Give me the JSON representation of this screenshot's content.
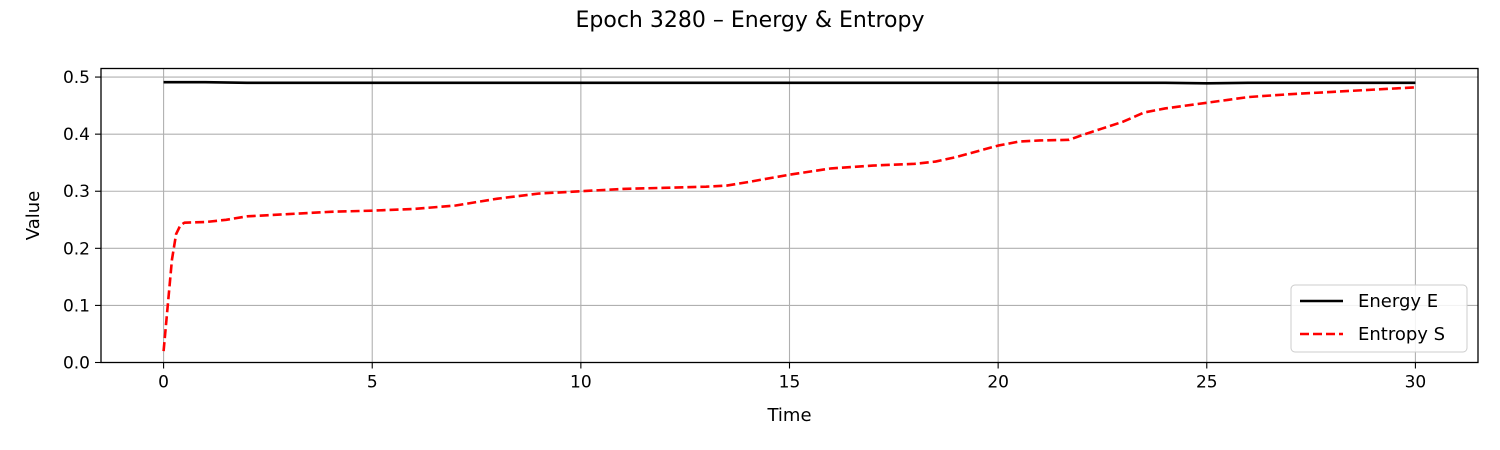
{
  "chart_data": {
    "type": "line",
    "title": "Epoch 3280 – Energy & Entropy",
    "xlabel": "Time",
    "ylabel": "Value",
    "xlim": [
      -1.5,
      31.5
    ],
    "ylim": [
      0.0,
      0.515
    ],
    "xticks": [
      0,
      5,
      10,
      15,
      20,
      25,
      30
    ],
    "yticks": [
      0.0,
      0.1,
      0.2,
      0.3,
      0.4,
      0.5
    ],
    "xtick_labels": [
      "0",
      "5",
      "10",
      "15",
      "20",
      "25",
      "30"
    ],
    "ytick_labels": [
      "0.0",
      "0.1",
      "0.2",
      "0.3",
      "0.4",
      "0.5"
    ],
    "grid": true,
    "legend_position": "lower-right",
    "series": [
      {
        "name": "Energy E",
        "color": "#000000",
        "style": "solid",
        "x": [
          0,
          1,
          2,
          5,
          10,
          15,
          20,
          23,
          24,
          25,
          26,
          27,
          28,
          29,
          30
        ],
        "y": [
          0.491,
          0.491,
          0.49,
          0.49,
          0.49,
          0.49,
          0.49,
          0.49,
          0.49,
          0.489,
          0.49,
          0.49,
          0.49,
          0.49,
          0.49
        ]
      },
      {
        "name": "Entropy S",
        "color": "#ff0000",
        "style": "dashed",
        "x": [
          0.0,
          0.1,
          0.2,
          0.3,
          0.4,
          0.5,
          1.0,
          1.5,
          2.0,
          3.0,
          4.0,
          5.0,
          6.0,
          7.0,
          8.0,
          9.0,
          10.0,
          11.0,
          12.0,
          13.0,
          13.5,
          14.0,
          15.0,
          16.0,
          17.0,
          18.0,
          18.5,
          19.0,
          20.0,
          20.5,
          21.0,
          21.7,
          22.0,
          22.5,
          23.0,
          23.5,
          24.0,
          25.0,
          25.5,
          26.0,
          27.0,
          28.0,
          29.0,
          30.0
        ],
        "y": [
          0.02,
          0.1,
          0.18,
          0.225,
          0.24,
          0.245,
          0.246,
          0.25,
          0.256,
          0.26,
          0.264,
          0.266,
          0.269,
          0.275,
          0.287,
          0.296,
          0.3,
          0.304,
          0.306,
          0.308,
          0.31,
          0.316,
          0.329,
          0.34,
          0.345,
          0.348,
          0.352,
          0.36,
          0.38,
          0.387,
          0.389,
          0.39,
          0.398,
          0.41,
          0.422,
          0.438,
          0.445,
          0.455,
          0.46,
          0.465,
          0.47,
          0.474,
          0.478,
          0.482
        ]
      }
    ]
  }
}
